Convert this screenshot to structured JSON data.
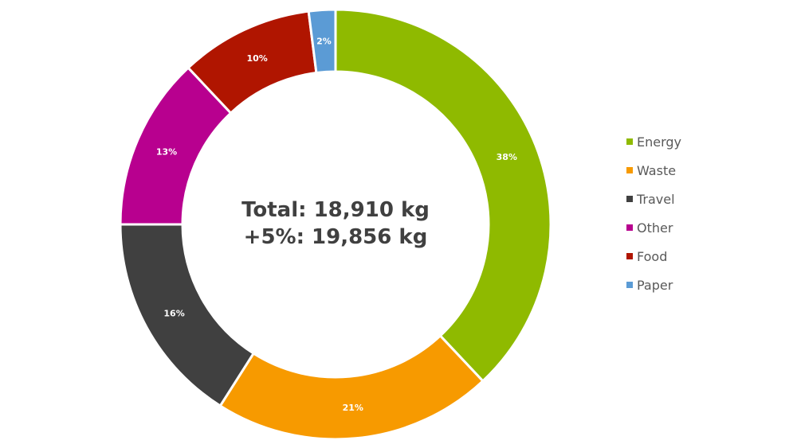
{
  "chart_data": {
    "type": "pie",
    "variant": "donut",
    "center_text": [
      "Total: 18,910 kg",
      "+5%: 19,856 kg"
    ],
    "categories": [
      "Energy",
      "Waste",
      "Travel",
      "Other",
      "Food",
      "Paper"
    ],
    "values": [
      38,
      21,
      16,
      13,
      10,
      2
    ],
    "labels": [
      "38%",
      "21%",
      "16%",
      "13%",
      "10%",
      "2%"
    ],
    "colors": [
      "#8fba00",
      "#f79a00",
      "#404040",
      "#b8008f",
      "#b01500",
      "#5b9bd5"
    ],
    "legend_position": "right"
  }
}
